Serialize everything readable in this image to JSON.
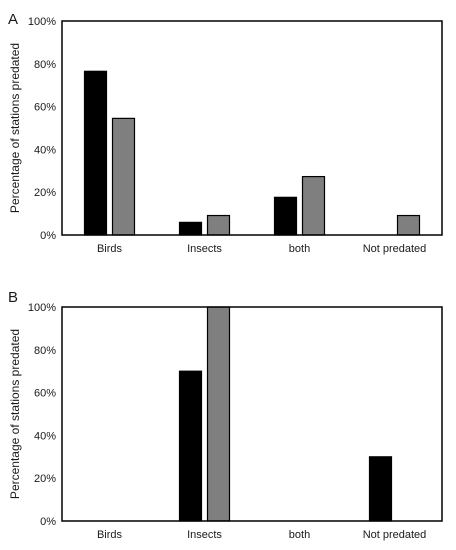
{
  "chart_data": [
    {
      "type": "bar",
      "panel_label": "A",
      "categories": [
        "Birds",
        "Insects",
        "both",
        "Not predated"
      ],
      "series": [
        {
          "color": "#000000",
          "values": [
            76.5,
            5.9,
            17.6,
            0
          ]
        },
        {
          "color": "#7f7f7f",
          "values": [
            54.5,
            9.1,
            27.3,
            9.1
          ]
        }
      ],
      "ylabel": "Percentage of stations predated",
      "ylim": [
        0,
        100
      ],
      "yticks": [
        "0%",
        "20%",
        "40%",
        "60%",
        "80%",
        "100%"
      ],
      "grid": false,
      "legend": "none"
    },
    {
      "type": "bar",
      "panel_label": "B",
      "categories": [
        "Birds",
        "Insects",
        "both",
        "Not predated"
      ],
      "series": [
        {
          "color": "#000000",
          "values": [
            0,
            70,
            0,
            30
          ]
        },
        {
          "color": "#7f7f7f",
          "values": [
            0,
            100,
            0,
            0
          ]
        }
      ],
      "ylabel": "Percentage of stations predated",
      "ylim": [
        0,
        100
      ],
      "yticks": [
        "0%",
        "20%",
        "40%",
        "60%",
        "80%",
        "100%"
      ],
      "grid": false,
      "legend": "none"
    }
  ]
}
